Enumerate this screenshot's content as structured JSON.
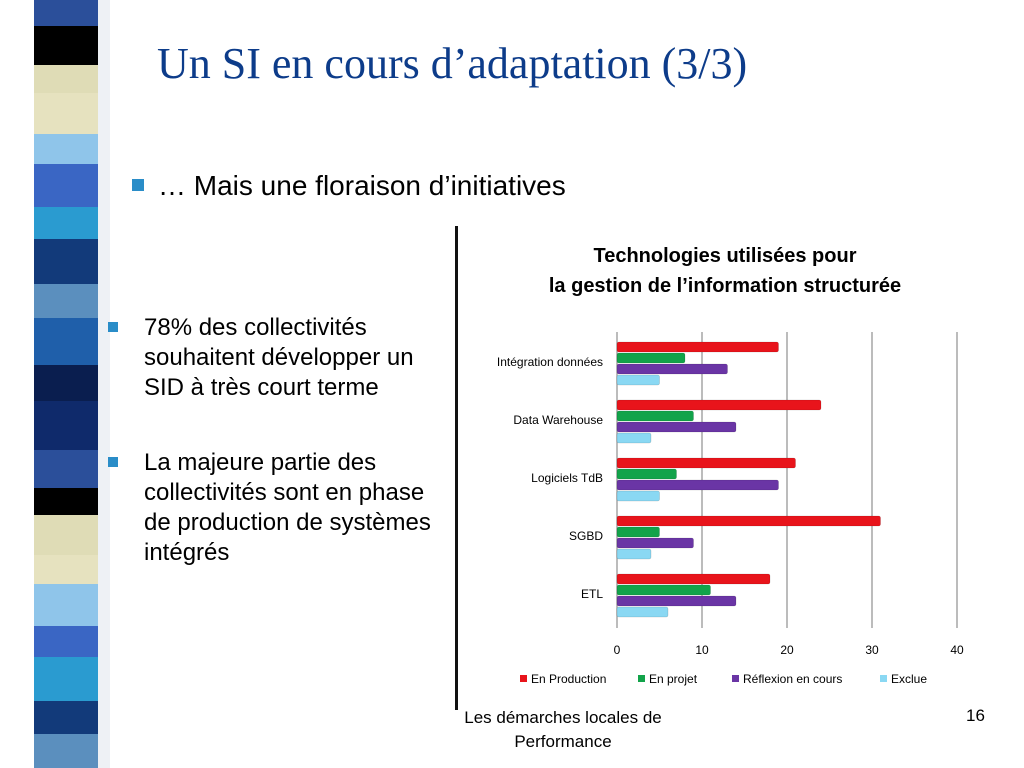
{
  "slide": {
    "title": "Un SI en cours d’adaptation (3/3)",
    "subtitle": "… Mais une floraison d’initiatives",
    "bullets": [
      "78% des collectivités souhaitent développer un SID à très court terme",
      "La majeure partie des collectivités sont en phase de production de systèmes intégrés"
    ],
    "footer": "Les démarches locales de Performance",
    "page_number": "16",
    "accent_color": "#2a8dc8",
    "title_color": "#0d3c8a"
  },
  "chart_data": {
    "type": "bar",
    "orientation": "horizontal",
    "title_lines": [
      "Technologies utilisées pour",
      "la gestion de l’information structurée"
    ],
    "categories": [
      "Intégration données",
      "Data Warehouse",
      "Logiciels TdB",
      "SGBD",
      "ETL"
    ],
    "series": [
      {
        "name": "En Production",
        "color": "#e8141b",
        "values": [
          19,
          24,
          21,
          31,
          18
        ]
      },
      {
        "name": "En projet",
        "color": "#12a34a",
        "values": [
          8,
          9,
          7,
          5,
          11
        ]
      },
      {
        "name": "Réflexion en cours",
        "color": "#6a35a5",
        "values": [
          13,
          14,
          19,
          9,
          14
        ]
      },
      {
        "name": "Exclue",
        "color": "#8ad8f3",
        "values": [
          5,
          4,
          5,
          4,
          6
        ]
      }
    ],
    "xlim": [
      0,
      40
    ],
    "x_ticks": [
      0,
      10,
      20,
      30,
      40
    ],
    "grid": true,
    "legend_position": "bottom"
  }
}
